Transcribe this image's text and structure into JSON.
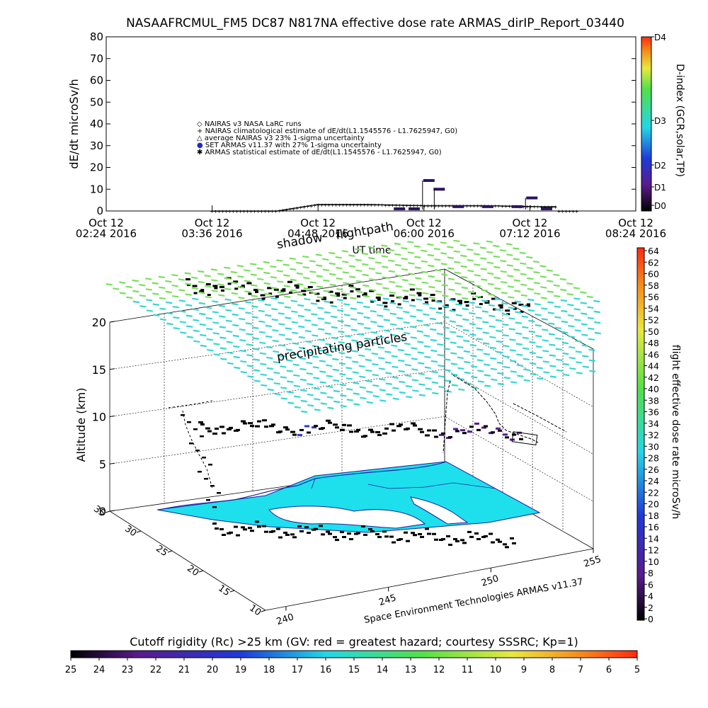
{
  "top_chart": {
    "title": "NASAAFRCMUL_FM5 DC87 N817NA effective dose rate ARMAS_dirIP_Report_03440",
    "ylabel": "dE/dt microSv/h",
    "xlabel": "UT time",
    "y_ticks": [
      "0",
      "10",
      "20",
      "30",
      "40",
      "50",
      "60",
      "70",
      "80"
    ],
    "x_ticks": [
      {
        "line1": "Oct 12",
        "line2": "02:24 2016"
      },
      {
        "line1": "Oct 12",
        "line2": "03:36 2016"
      },
      {
        "line1": "Oct 12",
        "line2": "04:48 2016"
      },
      {
        "line1": "Oct 12",
        "line2": "06:00 2016"
      },
      {
        "line1": "Oct 12",
        "line2": "07:12 2016"
      },
      {
        "line1": "Oct 12",
        "line2": "08:24 2016"
      }
    ],
    "legend": [
      {
        "symbol": "◇",
        "text": "NAIRAS v3 NASA LaRC runs"
      },
      {
        "symbol": "+",
        "text": "NAIRAS climatological estimate of dE/dt(L1.1545576 - L1.7625947, G0)"
      },
      {
        "symbol": "△",
        "text": "average NAIRAS v3 23% 1-sigma uncertainty"
      },
      {
        "symbol": "●",
        "text": "SET ARMAS v11.37 with 27% 1-sigma uncertainty"
      },
      {
        "symbol": "✱",
        "text": "ARMAS statistical estimate of dE/dt(L1.1545576 - L1.7625947, G0)"
      }
    ],
    "dindex_label": "D-index (GCR,solar,TP)",
    "dindex_ticks": [
      "D0",
      "D1",
      "D2",
      "D3",
      "D4"
    ]
  },
  "chart_data": [
    {
      "type": "line",
      "title": "NASAAFRCMUL_FM5 DC87 N817NA effective dose rate ARMAS_dirIP_Report_03440",
      "xlabel": "UT time",
      "ylabel": "dE/dt microSv/h",
      "ylim": [
        0,
        80
      ],
      "x_range": [
        "2016-10-12 02:24",
        "2016-10-12 08:24"
      ],
      "series": [
        {
          "name": "SET ARMAS v11.37 with 27% 1-sigma uncertainty",
          "x": [
            "2016-10-12 05:40",
            "2016-10-12 05:50",
            "2016-10-12 06:00",
            "2016-10-12 06:07",
            "2016-10-12 06:20",
            "2016-10-12 06:40",
            "2016-10-12 07:00",
            "2016-10-12 07:10",
            "2016-10-12 07:20"
          ],
          "y": [
            1,
            1,
            14,
            10,
            2,
            2,
            2,
            6,
            1
          ]
        },
        {
          "name": "NAIRAS climatological estimate of dE/dt(L1.1545576 - L1.7625947, G0)",
          "x": [
            "2016-10-12 03:36",
            "2016-10-12 04:20",
            "2016-10-12 04:48",
            "2016-10-12 05:20",
            "2016-10-12 06:00",
            "2016-10-12 06:40",
            "2016-10-12 07:20",
            "2016-10-12 07:30"
          ],
          "y": [
            0,
            0,
            3,
            3,
            2.5,
            2.5,
            2,
            2
          ]
        }
      ]
    },
    {
      "type": "scatter",
      "title": "",
      "zlabel": "Altitude (km)",
      "z_ticks": [
        "0",
        "5",
        "10",
        "15",
        "20"
      ],
      "x_ticks": [
        "240",
        "245",
        "250",
        "255"
      ],
      "y_ticks": [
        "10",
        "15",
        "20",
        "25",
        "30",
        "35"
      ],
      "annotations": [
        "shadow",
        "flightpath",
        "precipitating particles"
      ],
      "credit": "Space Environment Technologies ARMAS v11.37",
      "colorbar_label": "flight effective dose rate microSv/h",
      "colorbar_ticks": [
        "0",
        "2",
        "4",
        "6",
        "8",
        "10",
        "12",
        "14",
        "16",
        "18",
        "20",
        "22",
        "24",
        "26",
        "28",
        "30",
        "32",
        "34",
        "36",
        "38",
        "40",
        "42",
        "44",
        "46",
        "48",
        "50",
        "52",
        "54",
        "56",
        "58",
        "60",
        "62",
        "64"
      ]
    }
  ],
  "cutoff_bar": {
    "label": "Cutoff rigidity (Rc) >25 km (GV: red = greatest hazard; courtesy SSSRC; Kp=1)",
    "ticks": [
      "25",
      "24",
      "23",
      "22",
      "21",
      "20",
      "19",
      "18",
      "17",
      "16",
      "15",
      "14",
      "13",
      "12",
      "11",
      "10",
      "9",
      "8",
      "7",
      "6",
      "5"
    ]
  },
  "colors": {
    "armas": "#2a1460",
    "grid_cyan": "#33d7d0",
    "ocean_fill": "#1de0ec",
    "land_outline": "#2020a0",
    "particle_green": "#78e05a"
  }
}
